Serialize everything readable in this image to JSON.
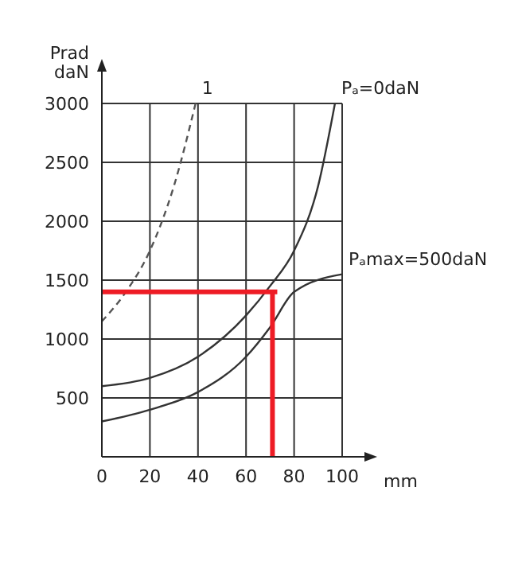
{
  "chart_data": {
    "type": "line",
    "xlabel": "mm",
    "ylabel": "Prad daN",
    "xlim": [
      0,
      100
    ],
    "xticks": [
      0,
      20,
      40,
      60,
      80,
      100
    ],
    "ylim": [
      0,
      3000
    ],
    "yticks": [
      500,
      1000,
      1500,
      2000,
      2500,
      3000
    ],
    "grid": true,
    "marker": "none",
    "series": [
      {
        "name": "1",
        "color": "#555555",
        "line_style": "dashed",
        "x": [
          0,
          10,
          20,
          30,
          39
        ],
        "values": [
          1150,
          1400,
          1750,
          2300,
          3000
        ]
      },
      {
        "name": "Pₐ=0daN",
        "color": "#333333",
        "line_style": "solid",
        "x": [
          0,
          20,
          40,
          60,
          70,
          80,
          90,
          97
        ],
        "values": [
          600,
          670,
          850,
          1200,
          1450,
          1750,
          2300,
          3000
        ]
      },
      {
        "name": "Pₐmax=500daN",
        "color": "#333333",
        "line_style": "solid",
        "x": [
          0,
          20,
          40,
          60,
          70,
          80,
          100
        ],
        "values": [
          300,
          400,
          550,
          850,
          1100,
          1400,
          1550
        ]
      },
      {
        "color": "#ee1c25",
        "line_style": "solid",
        "x": [
          0,
          73
        ],
        "values": [
          1400,
          1400
        ]
      },
      {
        "color": "#ee1c25",
        "line_style": "solid",
        "x": [
          71,
          71
        ],
        "values": [
          1400,
          0
        ]
      }
    ]
  }
}
